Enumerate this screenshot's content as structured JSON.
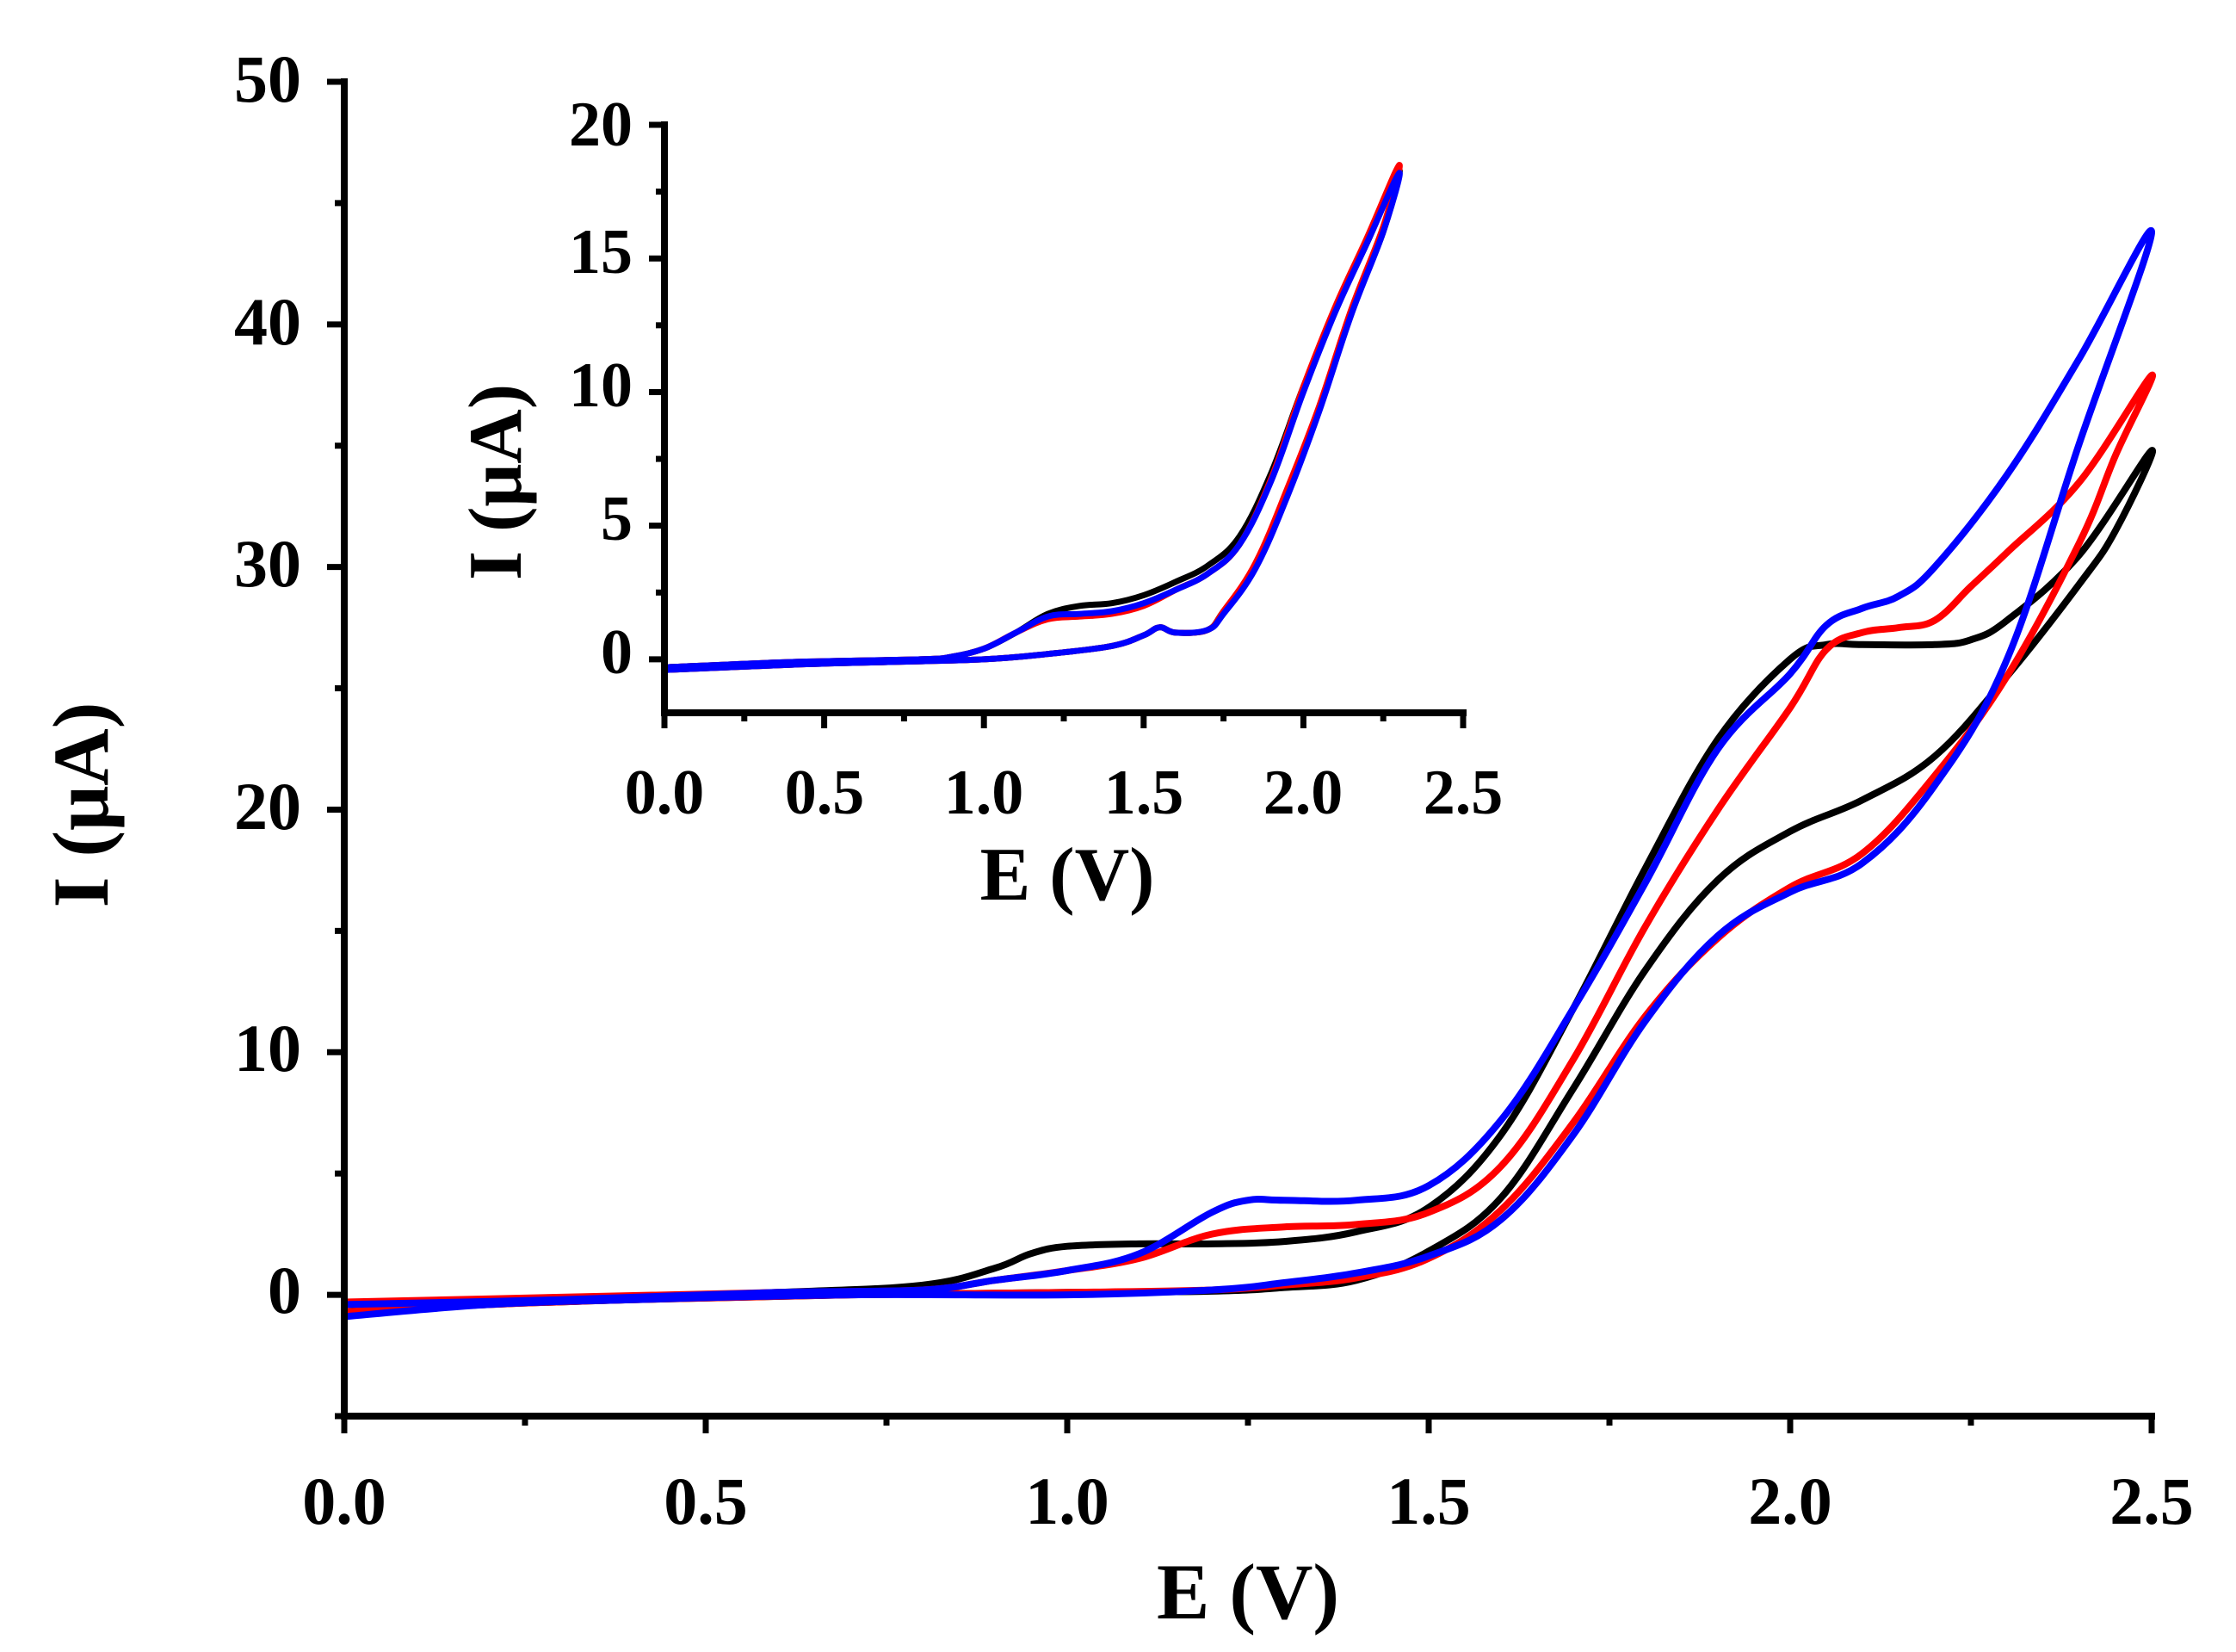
{
  "chart_data": [
    {
      "id": "main",
      "type": "line",
      "title": "",
      "xlabel": "E (V)",
      "ylabel": "I (μA)",
      "xlim": [
        0,
        2.5
      ],
      "ylim": [
        -5,
        50
      ],
      "xticks": [
        0.0,
        0.5,
        1.0,
        1.5,
        2.0,
        2.5
      ],
      "xtick_labels": [
        "0.0",
        "0.5",
        "1.0",
        "1.5",
        "2.0",
        "2.5"
      ],
      "yticks": [
        0,
        10,
        20,
        30,
        40,
        50
      ],
      "ytick_labels": [
        "0",
        "10",
        "20",
        "30",
        "40",
        "50"
      ],
      "grid": false,
      "legend": "none",
      "series": [
        {
          "name": "black",
          "color": "#000000",
          "points": [
            [
              0.0,
              -0.4
            ],
            [
              0.3,
              -0.2
            ],
            [
              0.6,
              0.1
            ],
            [
              0.8,
              0.4
            ],
            [
              0.9,
              1.1
            ],
            [
              0.95,
              1.7
            ],
            [
              1.0,
              2.0
            ],
            [
              1.1,
              2.1
            ],
            [
              1.2,
              2.1
            ],
            [
              1.3,
              2.2
            ],
            [
              1.4,
              2.6
            ],
            [
              1.5,
              3.6
            ],
            [
              1.6,
              6.6
            ],
            [
              1.7,
              11.8
            ],
            [
              1.8,
              17.6
            ],
            [
              1.9,
              22.9
            ],
            [
              2.0,
              26.2
            ],
            [
              2.05,
              26.8
            ],
            [
              2.1,
              26.8
            ],
            [
              2.2,
              26.8
            ],
            [
              2.25,
              27.0
            ],
            [
              2.3,
              27.8
            ],
            [
              2.4,
              30.5
            ],
            [
              2.5,
              34.8
            ],
            [
              2.45,
              31.5
            ],
            [
              2.4,
              29.3
            ],
            [
              2.3,
              25.5
            ],
            [
              2.2,
              22.2
            ],
            [
              2.1,
              20.4
            ],
            [
              2.0,
              19.1
            ],
            [
              1.9,
              17.1
            ],
            [
              1.8,
              13.4
            ],
            [
              1.7,
              8.5
            ],
            [
              1.6,
              4.0
            ],
            [
              1.5,
              1.8
            ],
            [
              1.4,
              0.6
            ],
            [
              1.3,
              0.3
            ],
            [
              1.2,
              0.15
            ],
            [
              1.0,
              0.1
            ],
            [
              0.7,
              0.0
            ],
            [
              0.4,
              -0.2
            ],
            [
              0.2,
              -0.4
            ],
            [
              0.0,
              -0.7
            ]
          ]
        },
        {
          "name": "red",
          "color": "#ff0000",
          "points": [
            [
              0.0,
              -0.3
            ],
            [
              0.3,
              -0.1
            ],
            [
              0.6,
              0.1
            ],
            [
              0.8,
              0.2
            ],
            [
              0.9,
              0.6
            ],
            [
              1.0,
              1.0
            ],
            [
              1.1,
              1.5
            ],
            [
              1.2,
              2.5
            ],
            [
              1.3,
              2.8
            ],
            [
              1.4,
              2.9
            ],
            [
              1.5,
              3.4
            ],
            [
              1.6,
              5.3
            ],
            [
              1.7,
              9.7
            ],
            [
              1.8,
              15.2
            ],
            [
              1.9,
              20.0
            ],
            [
              2.0,
              24.2
            ],
            [
              2.05,
              26.6
            ],
            [
              2.1,
              27.3
            ],
            [
              2.15,
              27.5
            ],
            [
              2.2,
              27.8
            ],
            [
              2.25,
              29.2
            ],
            [
              2.3,
              30.6
            ],
            [
              2.4,
              33.5
            ],
            [
              2.5,
              37.9
            ],
            [
              2.45,
              34.6
            ],
            [
              2.4,
              31.0
            ],
            [
              2.3,
              25.5
            ],
            [
              2.2,
              21.4
            ],
            [
              2.1,
              18.2
            ],
            [
              2.0,
              16.8
            ],
            [
              1.9,
              14.7
            ],
            [
              1.8,
              11.5
            ],
            [
              1.7,
              7.1
            ],
            [
              1.6,
              3.5
            ],
            [
              1.5,
              1.5
            ],
            [
              1.4,
              0.7
            ],
            [
              1.3,
              0.4
            ],
            [
              1.2,
              0.2
            ],
            [
              1.0,
              0.1
            ],
            [
              0.7,
              0.0
            ],
            [
              0.4,
              -0.2
            ],
            [
              0.2,
              -0.4
            ],
            [
              0.0,
              -0.7
            ]
          ]
        },
        {
          "name": "blue",
          "color": "#0000ff",
          "points": [
            [
              0.0,
              -0.4
            ],
            [
              0.3,
              -0.2
            ],
            [
              0.6,
              0.1
            ],
            [
              0.8,
              0.2
            ],
            [
              0.9,
              0.6
            ],
            [
              1.0,
              1.0
            ],
            [
              1.1,
              1.7
            ],
            [
              1.2,
              3.4
            ],
            [
              1.25,
              3.9
            ],
            [
              1.3,
              3.9
            ],
            [
              1.4,
              3.9
            ],
            [
              1.5,
              4.5
            ],
            [
              1.6,
              7.2
            ],
            [
              1.7,
              11.8
            ],
            [
              1.8,
              17.0
            ],
            [
              1.9,
              22.5
            ],
            [
              2.0,
              25.6
            ],
            [
              2.05,
              27.6
            ],
            [
              2.1,
              28.3
            ],
            [
              2.15,
              28.8
            ],
            [
              2.2,
              30.0
            ],
            [
              2.3,
              33.8
            ],
            [
              2.4,
              38.6
            ],
            [
              2.5,
              43.8
            ],
            [
              2.4,
              35.1
            ],
            [
              2.3,
              26.2
            ],
            [
              2.2,
              21.0
            ],
            [
              2.1,
              17.8
            ],
            [
              2.0,
              16.6
            ],
            [
              1.9,
              14.8
            ],
            [
              1.8,
              11.3
            ],
            [
              1.7,
              6.6
            ],
            [
              1.6,
              3.1
            ],
            [
              1.5,
              1.6
            ],
            [
              1.4,
              0.9
            ],
            [
              1.3,
              0.5
            ],
            [
              1.2,
              0.2
            ],
            [
              1.0,
              0.0
            ],
            [
              0.7,
              0.0
            ],
            [
              0.4,
              -0.2
            ],
            [
              0.2,
              -0.4
            ],
            [
              0.0,
              -0.9
            ]
          ]
        }
      ]
    },
    {
      "id": "inset",
      "type": "line",
      "title": "",
      "xlabel": "E (V)",
      "ylabel": "I (μA)",
      "xlim": [
        0,
        2.5
      ],
      "ylim": [
        -2,
        20
      ],
      "xticks": [
        0.0,
        0.5,
        1.0,
        1.5,
        2.0,
        2.5
      ],
      "xtick_labels": [
        "0.0",
        "0.5",
        "1.0",
        "1.5",
        "2.0",
        "2.5"
      ],
      "yticks": [
        0,
        5,
        10,
        15,
        20
      ],
      "ytick_labels": [
        "0",
        "5",
        "10",
        "15",
        "20"
      ],
      "grid": false,
      "legend": "none",
      "series": [
        {
          "name": "black",
          "color": "#000000",
          "points": [
            [
              0.0,
              -0.3
            ],
            [
              0.4,
              -0.1
            ],
            [
              0.8,
              0.0
            ],
            [
              0.9,
              0.1
            ],
            [
              1.0,
              0.4
            ],
            [
              1.1,
              1.0
            ],
            [
              1.2,
              1.7
            ],
            [
              1.3,
              2.0
            ],
            [
              1.4,
              2.1
            ],
            [
              1.5,
              2.4
            ],
            [
              1.6,
              2.9
            ],
            [
              1.7,
              3.5
            ],
            [
              1.8,
              4.6
            ],
            [
              1.9,
              7.0
            ],
            [
              2.0,
              10.2
            ],
            [
              2.1,
              13.1
            ],
            [
              2.2,
              15.6
            ],
            [
              2.3,
              18.3
            ],
            [
              2.25,
              16.0
            ],
            [
              2.15,
              13.0
            ],
            [
              2.05,
              9.4
            ],
            [
              1.95,
              6.3
            ],
            [
              1.85,
              3.5
            ],
            [
              1.75,
              1.8
            ],
            [
              1.7,
              1.1
            ],
            [
              1.6,
              1.0
            ],
            [
              1.55,
              1.2
            ],
            [
              1.5,
              0.9
            ],
            [
              1.4,
              0.5
            ],
            [
              1.2,
              0.2
            ],
            [
              1.0,
              0.0
            ],
            [
              0.7,
              -0.1
            ],
            [
              0.4,
              -0.2
            ],
            [
              0.0,
              -0.4
            ]
          ]
        },
        {
          "name": "red",
          "color": "#ff0000",
          "points": [
            [
              0.0,
              -0.3
            ],
            [
              0.4,
              -0.1
            ],
            [
              0.8,
              0.0
            ],
            [
              0.9,
              0.1
            ],
            [
              1.0,
              0.4
            ],
            [
              1.1,
              1.0
            ],
            [
              1.2,
              1.5
            ],
            [
              1.3,
              1.6
            ],
            [
              1.4,
              1.7
            ],
            [
              1.5,
              2.0
            ],
            [
              1.6,
              2.6
            ],
            [
              1.7,
              3.2
            ],
            [
              1.8,
              4.3
            ],
            [
              1.9,
              6.8
            ],
            [
              2.0,
              10.2
            ],
            [
              2.1,
              13.2
            ],
            [
              2.2,
              15.8
            ],
            [
              2.3,
              18.5
            ],
            [
              2.25,
              16.2
            ],
            [
              2.15,
              13.1
            ],
            [
              2.05,
              9.5
            ],
            [
              1.95,
              6.4
            ],
            [
              1.85,
              3.6
            ],
            [
              1.75,
              1.8
            ],
            [
              1.7,
              1.1
            ],
            [
              1.6,
              1.0
            ],
            [
              1.55,
              1.2
            ],
            [
              1.5,
              0.9
            ],
            [
              1.4,
              0.5
            ],
            [
              1.2,
              0.2
            ],
            [
              1.0,
              0.0
            ],
            [
              0.7,
              -0.1
            ],
            [
              0.4,
              -0.2
            ],
            [
              0.0,
              -0.4
            ]
          ]
        },
        {
          "name": "blue",
          "color": "#0000ff",
          "points": [
            [
              0.0,
              -0.3
            ],
            [
              0.4,
              -0.1
            ],
            [
              0.8,
              0.0
            ],
            [
              0.9,
              0.1
            ],
            [
              1.0,
              0.4
            ],
            [
              1.1,
              1.0
            ],
            [
              1.2,
              1.6
            ],
            [
              1.3,
              1.7
            ],
            [
              1.4,
              1.8
            ],
            [
              1.5,
              2.1
            ],
            [
              1.6,
              2.6
            ],
            [
              1.7,
              3.2
            ],
            [
              1.8,
              4.3
            ],
            [
              1.9,
              6.7
            ],
            [
              2.0,
              10.0
            ],
            [
              2.1,
              13.0
            ],
            [
              2.2,
              15.6
            ],
            [
              2.3,
              18.2
            ],
            [
              2.25,
              16.0
            ],
            [
              2.15,
              12.9
            ],
            [
              2.05,
              9.3
            ],
            [
              1.95,
              6.1
            ],
            [
              1.85,
              3.4
            ],
            [
              1.75,
              1.7
            ],
            [
              1.7,
              1.1
            ],
            [
              1.6,
              1.0
            ],
            [
              1.55,
              1.2
            ],
            [
              1.5,
              0.9
            ],
            [
              1.4,
              0.5
            ],
            [
              1.2,
              0.2
            ],
            [
              1.0,
              0.0
            ],
            [
              0.7,
              -0.1
            ],
            [
              0.4,
              -0.2
            ],
            [
              0.0,
              -0.4
            ]
          ]
        }
      ]
    }
  ]
}
